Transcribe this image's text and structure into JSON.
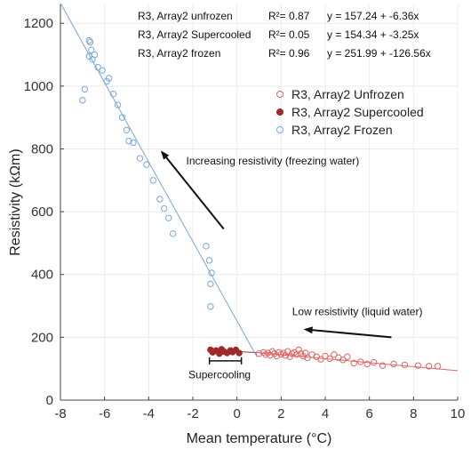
{
  "chart_data": {
    "type": "scatter",
    "xlabel": "Mean temperature (°C)",
    "ylabel": "Resistivity (kΩm)",
    "xlim": [
      -8,
      10
    ],
    "ylim": [
      0,
      1260
    ],
    "xticks": [
      -8,
      -6,
      -4,
      -2,
      0,
      2,
      4,
      6,
      8,
      10
    ],
    "yticks": [
      0,
      200,
      400,
      600,
      800,
      1000,
      1200
    ],
    "grid": true,
    "legend_position": "upper-right",
    "series": [
      {
        "name": "R3, Array2 Unfrozen",
        "color": "#e06666",
        "marker": "open-circle",
        "fit": {
          "intercept": 157.24,
          "slope": -6.36,
          "x_range": [
            0.9,
            10
          ]
        },
        "equation_label": "R3, Array2 unfrozen",
        "r2_label": "R²= 0.87",
        "equation": "y = 157.24 + -6.36x",
        "points": [
          [
            1.0,
            148
          ],
          [
            1.2,
            152
          ],
          [
            1.3,
            145
          ],
          [
            1.4,
            150
          ],
          [
            1.5,
            143
          ],
          [
            1.6,
            155
          ],
          [
            1.7,
            148
          ],
          [
            1.8,
            140
          ],
          [
            1.9,
            152
          ],
          [
            2.0,
            146
          ],
          [
            2.1,
            150
          ],
          [
            2.2,
            142
          ],
          [
            2.3,
            155
          ],
          [
            2.4,
            138
          ],
          [
            2.5,
            148
          ],
          [
            2.6,
            152
          ],
          [
            2.7,
            145
          ],
          [
            2.8,
            160
          ],
          [
            2.9,
            148
          ],
          [
            3.0,
            140
          ],
          [
            3.1,
            150
          ],
          [
            3.2,
            135
          ],
          [
            3.4,
            145
          ],
          [
            3.6,
            138
          ],
          [
            3.8,
            130
          ],
          [
            4.0,
            140
          ],
          [
            4.2,
            132
          ],
          [
            4.4,
            145
          ],
          [
            4.6,
            135
          ],
          [
            4.8,
            128
          ],
          [
            5.0,
            138
          ],
          [
            5.3,
            118
          ],
          [
            5.6,
            122
          ],
          [
            5.9,
            115
          ],
          [
            6.2,
            120
          ],
          [
            6.6,
            110
          ],
          [
            7.1,
            115
          ],
          [
            7.6,
            112
          ],
          [
            8.2,
            110
          ],
          [
            8.7,
            108
          ],
          [
            9.1,
            108
          ]
        ]
      },
      {
        "name": "R3, Array2 Supercooled",
        "color": "#9e2a2a",
        "marker": "filled-circle",
        "fit": {
          "intercept": 154.34,
          "slope": -3.25,
          "x_range": [
            -1.3,
            0.9
          ]
        },
        "equation_label": "R3, Array2 Supercooled",
        "r2_label": "R²= 0.05",
        "equation": "y = 154.34 + -3.25x",
        "points": [
          [
            -1.2,
            160
          ],
          [
            -1.1,
            152
          ],
          [
            -0.95,
            158
          ],
          [
            -0.8,
            148
          ],
          [
            -0.7,
            162
          ],
          [
            -0.6,
            155
          ],
          [
            -0.45,
            150
          ],
          [
            -0.3,
            158
          ],
          [
            -0.2,
            153
          ],
          [
            -0.05,
            160
          ],
          [
            0.1,
            150
          ]
        ]
      },
      {
        "name": "R3, Array2 Frozen",
        "color": "#7aa6da",
        "marker": "open-circle",
        "fit": {
          "intercept": 251.99,
          "slope": -126.56,
          "x_range": [
            -8,
            0.9
          ]
        },
        "equation_label": "R3, Array2 frozen",
        "r2_label": "R²= 0.96",
        "equation": "y = 251.99 + -126.56x",
        "points": [
          [
            -7.0,
            955
          ],
          [
            -6.9,
            990
          ],
          [
            -6.7,
            1145
          ],
          [
            -6.65,
            1140
          ],
          [
            -6.7,
            1095
          ],
          [
            -6.6,
            1115
          ],
          [
            -6.55,
            1085
          ],
          [
            -6.45,
            1100
          ],
          [
            -6.3,
            1060
          ],
          [
            -6.1,
            1050
          ],
          [
            -5.9,
            1015
          ],
          [
            -5.8,
            1025
          ],
          [
            -5.6,
            975
          ],
          [
            -5.4,
            940
          ],
          [
            -5.2,
            900
          ],
          [
            -5.0,
            860
          ],
          [
            -4.9,
            825
          ],
          [
            -4.7,
            820
          ],
          [
            -4.4,
            770
          ],
          [
            -4.1,
            750
          ],
          [
            -3.8,
            700
          ],
          [
            -3.5,
            640
          ],
          [
            -3.3,
            610
          ],
          [
            -3.1,
            580
          ],
          [
            -2.9,
            530
          ],
          [
            -1.4,
            490
          ],
          [
            -1.25,
            445
          ],
          [
            -1.15,
            405
          ],
          [
            -1.2,
            370
          ],
          [
            -1.2,
            298
          ]
        ]
      }
    ],
    "annotations": [
      {
        "text": "Increasing resistivity (freezing water)",
        "x": -2.3,
        "y": 750,
        "arrow_from": [
          -0.6,
          545
        ],
        "arrow_to": [
          -3.4,
          790
        ]
      },
      {
        "text": "Low resistivity (liquid water)",
        "x": 2.5,
        "y": 270,
        "arrow_from": [
          7.0,
          200
        ],
        "arrow_to": [
          3.1,
          225
        ]
      },
      {
        "text": "Supercooling",
        "x": -2.2,
        "y": 70,
        "bracket": [
          -1.25,
          0.2,
          125
        ]
      }
    ]
  }
}
